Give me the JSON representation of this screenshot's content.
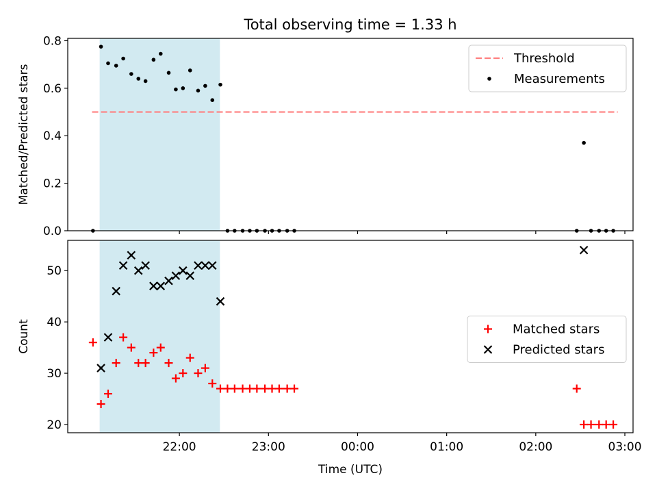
{
  "chart_data": {
    "title": "Total observing time = 1.33 h",
    "xlabel": "Time (UTC)",
    "x_units": "decimal hours UTC since 21:00 on the first night (for example, 1.5 = 22:30)",
    "xlim": [
      -0.253,
      6.092
    ],
    "xticks": [
      {
        "x": 1,
        "label": "22:00"
      },
      {
        "x": 2,
        "label": "23:00"
      },
      {
        "x": 3,
        "label": "00:00"
      },
      {
        "x": 4,
        "label": "01:00"
      },
      {
        "x": 5,
        "label": "02:00"
      },
      {
        "x": 6,
        "label": "03:00"
      }
    ],
    "highlight_span": {
      "x0": 0.105,
      "x1": 1.455,
      "color": "#add8e6"
    },
    "panels": [
      {
        "type": "scatter",
        "ylabel": "Matched/Predicted stars",
        "ylim": [
          0,
          0.81
        ],
        "yticks": [
          {
            "y": 0.0,
            "label": "0.0"
          },
          {
            "y": 0.2,
            "label": "0.2"
          },
          {
            "y": 0.4,
            "label": "0.4"
          },
          {
            "y": 0.6,
            "label": "0.6"
          },
          {
            "y": 0.8,
            "label": "0.8"
          }
        ],
        "legend_position": "upper right",
        "threshold": {
          "name": "Threshold",
          "y": 0.5,
          "x0": 0.02,
          "x1": 5.92,
          "color": "#ff7f7f"
        },
        "series": [
          {
            "name": "Measurements",
            "marker": "dot",
            "color": "#000000",
            "points": [
              [
                0.03,
                0.0
              ],
              [
                0.12,
                0.775
              ],
              [
                0.2,
                0.705
              ],
              [
                0.29,
                0.695
              ],
              [
                0.37,
                0.725
              ],
              [
                0.46,
                0.66
              ],
              [
                0.54,
                0.64
              ],
              [
                0.62,
                0.63
              ],
              [
                0.71,
                0.72
              ],
              [
                0.79,
                0.745
              ],
              [
                0.88,
                0.665
              ],
              [
                0.96,
                0.595
              ],
              [
                1.04,
                0.6
              ],
              [
                1.12,
                0.675
              ],
              [
                1.21,
                0.59
              ],
              [
                1.29,
                0.61
              ],
              [
                1.37,
                0.55
              ],
              [
                1.46,
                0.615
              ],
              [
                1.54,
                0.0
              ],
              [
                1.62,
                0.0
              ],
              [
                1.71,
                0.0
              ],
              [
                1.79,
                0.0
              ],
              [
                1.87,
                0.0
              ],
              [
                1.96,
                0.0
              ],
              [
                2.04,
                0.0
              ],
              [
                2.12,
                0.0
              ],
              [
                2.21,
                0.0
              ],
              [
                2.29,
                0.0
              ],
              [
                5.46,
                0.0
              ],
              [
                5.54,
                0.37
              ],
              [
                5.62,
                0.0
              ],
              [
                5.71,
                0.0
              ],
              [
                5.79,
                0.0
              ],
              [
                5.87,
                0.0
              ]
            ]
          }
        ]
      },
      {
        "type": "scatter",
        "ylabel": "Count",
        "ylim": [
          18.4,
          55.9
        ],
        "yticks": [
          {
            "y": 20,
            "label": "20"
          },
          {
            "y": 30,
            "label": "30"
          },
          {
            "y": 40,
            "label": "40"
          },
          {
            "y": 50,
            "label": "50"
          }
        ],
        "legend_position": "center right",
        "series": [
          {
            "name": "Matched stars",
            "marker": "plus",
            "color": "#ff0000",
            "points": [
              [
                0.03,
                36
              ],
              [
                0.12,
                24
              ],
              [
                0.2,
                26
              ],
              [
                0.29,
                32
              ],
              [
                0.37,
                37
              ],
              [
                0.46,
                35
              ],
              [
                0.54,
                32
              ],
              [
                0.62,
                32
              ],
              [
                0.71,
                34
              ],
              [
                0.79,
                35
              ],
              [
                0.88,
                32
              ],
              [
                0.96,
                29
              ],
              [
                1.04,
                30
              ],
              [
                1.12,
                33
              ],
              [
                1.21,
                30
              ],
              [
                1.29,
                31
              ],
              [
                1.37,
                28
              ],
              [
                1.46,
                27
              ],
              [
                1.54,
                27
              ],
              [
                1.62,
                27
              ],
              [
                1.71,
                27
              ],
              [
                1.79,
                27
              ],
              [
                1.87,
                27
              ],
              [
                1.96,
                27
              ],
              [
                2.04,
                27
              ],
              [
                2.12,
                27
              ],
              [
                2.21,
                27
              ],
              [
                2.29,
                27
              ],
              [
                5.46,
                27
              ],
              [
                5.54,
                20
              ],
              [
                5.62,
                20
              ],
              [
                5.71,
                20
              ],
              [
                5.79,
                20
              ],
              [
                5.87,
                20
              ]
            ]
          },
          {
            "name": "Predicted stars",
            "marker": "x",
            "color": "#000000",
            "points": [
              [
                0.12,
                31
              ],
              [
                0.2,
                37
              ],
              [
                0.29,
                46
              ],
              [
                0.37,
                51
              ],
              [
                0.46,
                53
              ],
              [
                0.54,
                50
              ],
              [
                0.62,
                51
              ],
              [
                0.71,
                47
              ],
              [
                0.79,
                47
              ],
              [
                0.88,
                48
              ],
              [
                0.96,
                49
              ],
              [
                1.04,
                50
              ],
              [
                1.12,
                49
              ],
              [
                1.21,
                51
              ],
              [
                1.29,
                51
              ],
              [
                1.37,
                51
              ],
              [
                1.46,
                44
              ],
              [
                5.54,
                54
              ]
            ]
          }
        ]
      }
    ]
  }
}
